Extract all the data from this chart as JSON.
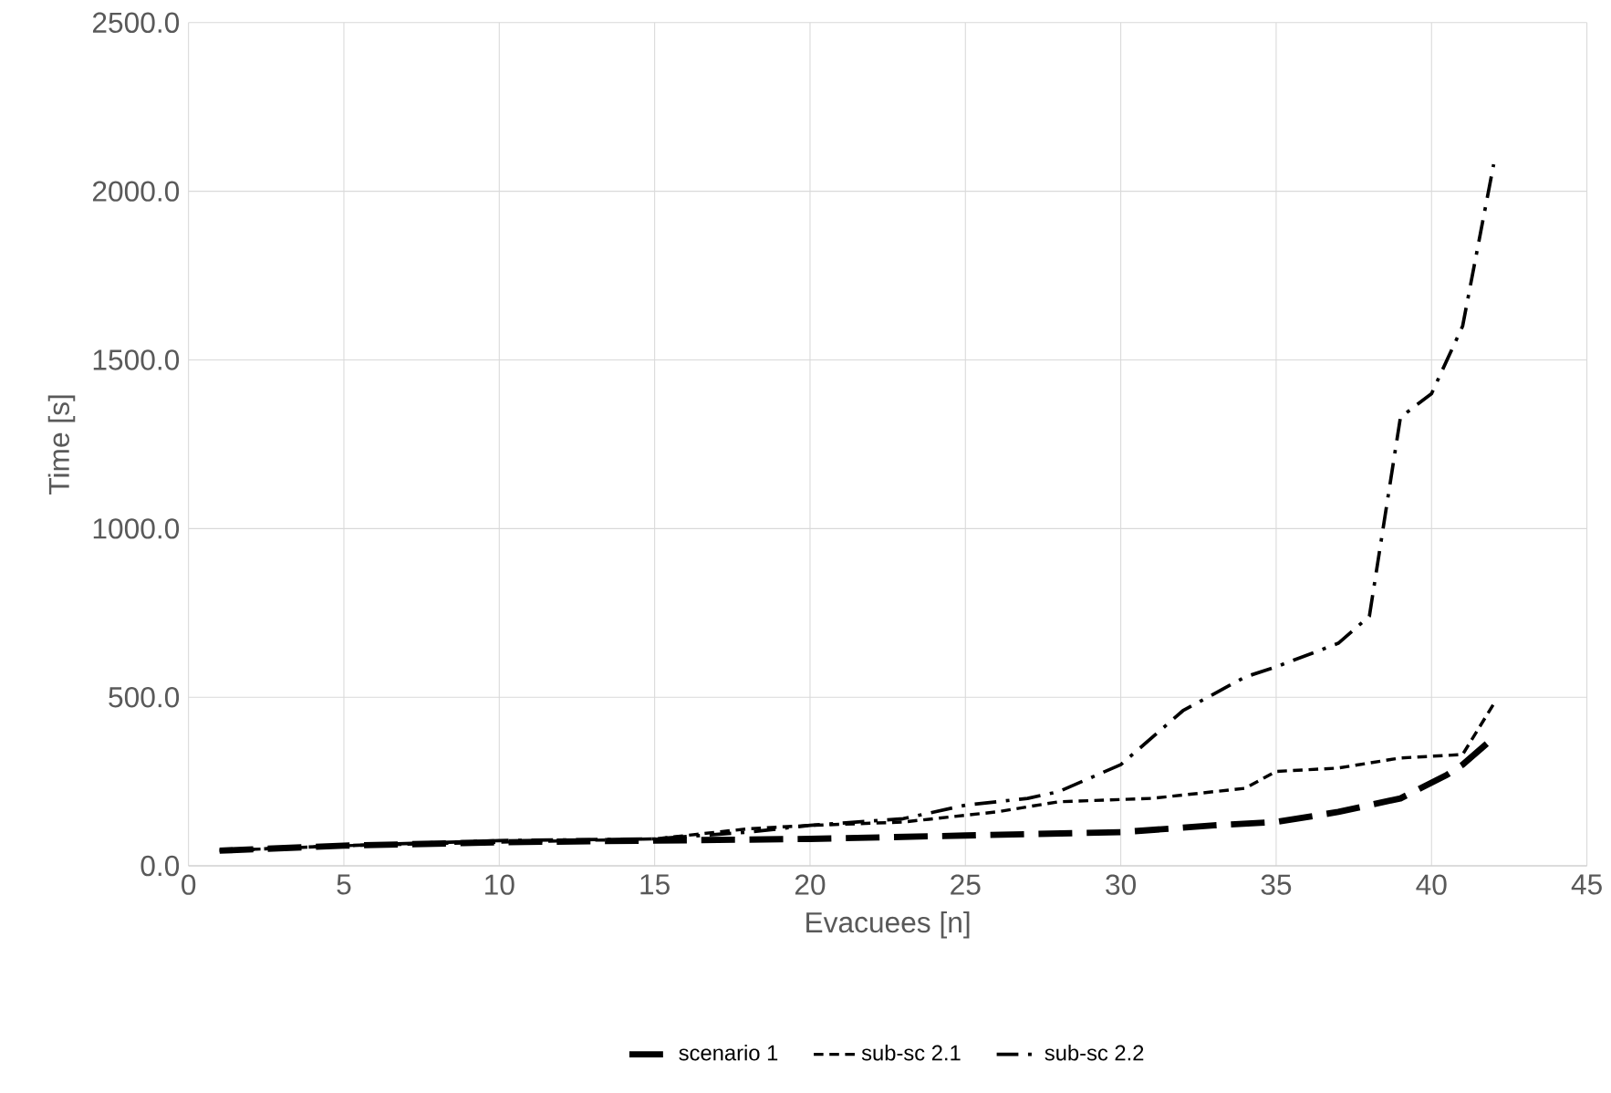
{
  "chart_data": {
    "type": "line",
    "xlabel": "Evacuees  [n]",
    "ylabel": "Time  [s]",
    "xlim": [
      0,
      45
    ],
    "xticks": [
      0,
      5,
      10,
      15,
      20,
      25,
      30,
      35,
      40,
      45
    ],
    "ylim": [
      0,
      2500
    ],
    "yticks": [
      {
        "value": 0,
        "label": "0.0"
      },
      {
        "value": 500,
        "label": "500.0"
      },
      {
        "value": 1000,
        "label": "1000.0"
      },
      {
        "value": 1500,
        "label": "1500.0"
      },
      {
        "value": 2000,
        "label": "2000.0"
      },
      {
        "value": 2500,
        "label": "2500.0"
      }
    ],
    "grid": true,
    "legend": "bottom",
    "marker": "none",
    "series": [
      {
        "name": "scenario 1",
        "color": "#000000",
        "line_style": "dashed",
        "x": [
          1,
          5,
          10,
          15,
          20,
          25,
          30,
          33,
          35,
          37,
          39,
          40.5,
          41,
          42
        ],
        "values": [
          45,
          60,
          70,
          75,
          80,
          90,
          100,
          120,
          130,
          160,
          200,
          270,
          300,
          380
        ]
      },
      {
        "name": "sub-sc 2.1",
        "color": "#000000",
        "line_style": "dotted",
        "x": [
          1,
          5,
          10,
          15,
          18,
          20,
          23,
          26,
          28,
          31,
          34,
          35,
          37,
          39,
          41,
          42
        ],
        "values": [
          45,
          60,
          70,
          80,
          110,
          120,
          130,
          160,
          190,
          200,
          230,
          280,
          290,
          320,
          330,
          480
        ]
      },
      {
        "name": "sub-sc 2.2",
        "color": "#000000",
        "line_style": "dashdot",
        "x": [
          1,
          5,
          10,
          15,
          18,
          20,
          23,
          25,
          27,
          28,
          30,
          32,
          34,
          35,
          37,
          38,
          39,
          40,
          41,
          42
        ],
        "values": [
          45,
          60,
          75,
          80,
          100,
          120,
          140,
          180,
          200,
          220,
          300,
          460,
          560,
          590,
          660,
          740,
          1330,
          1400,
          1600,
          2080
        ]
      }
    ]
  }
}
